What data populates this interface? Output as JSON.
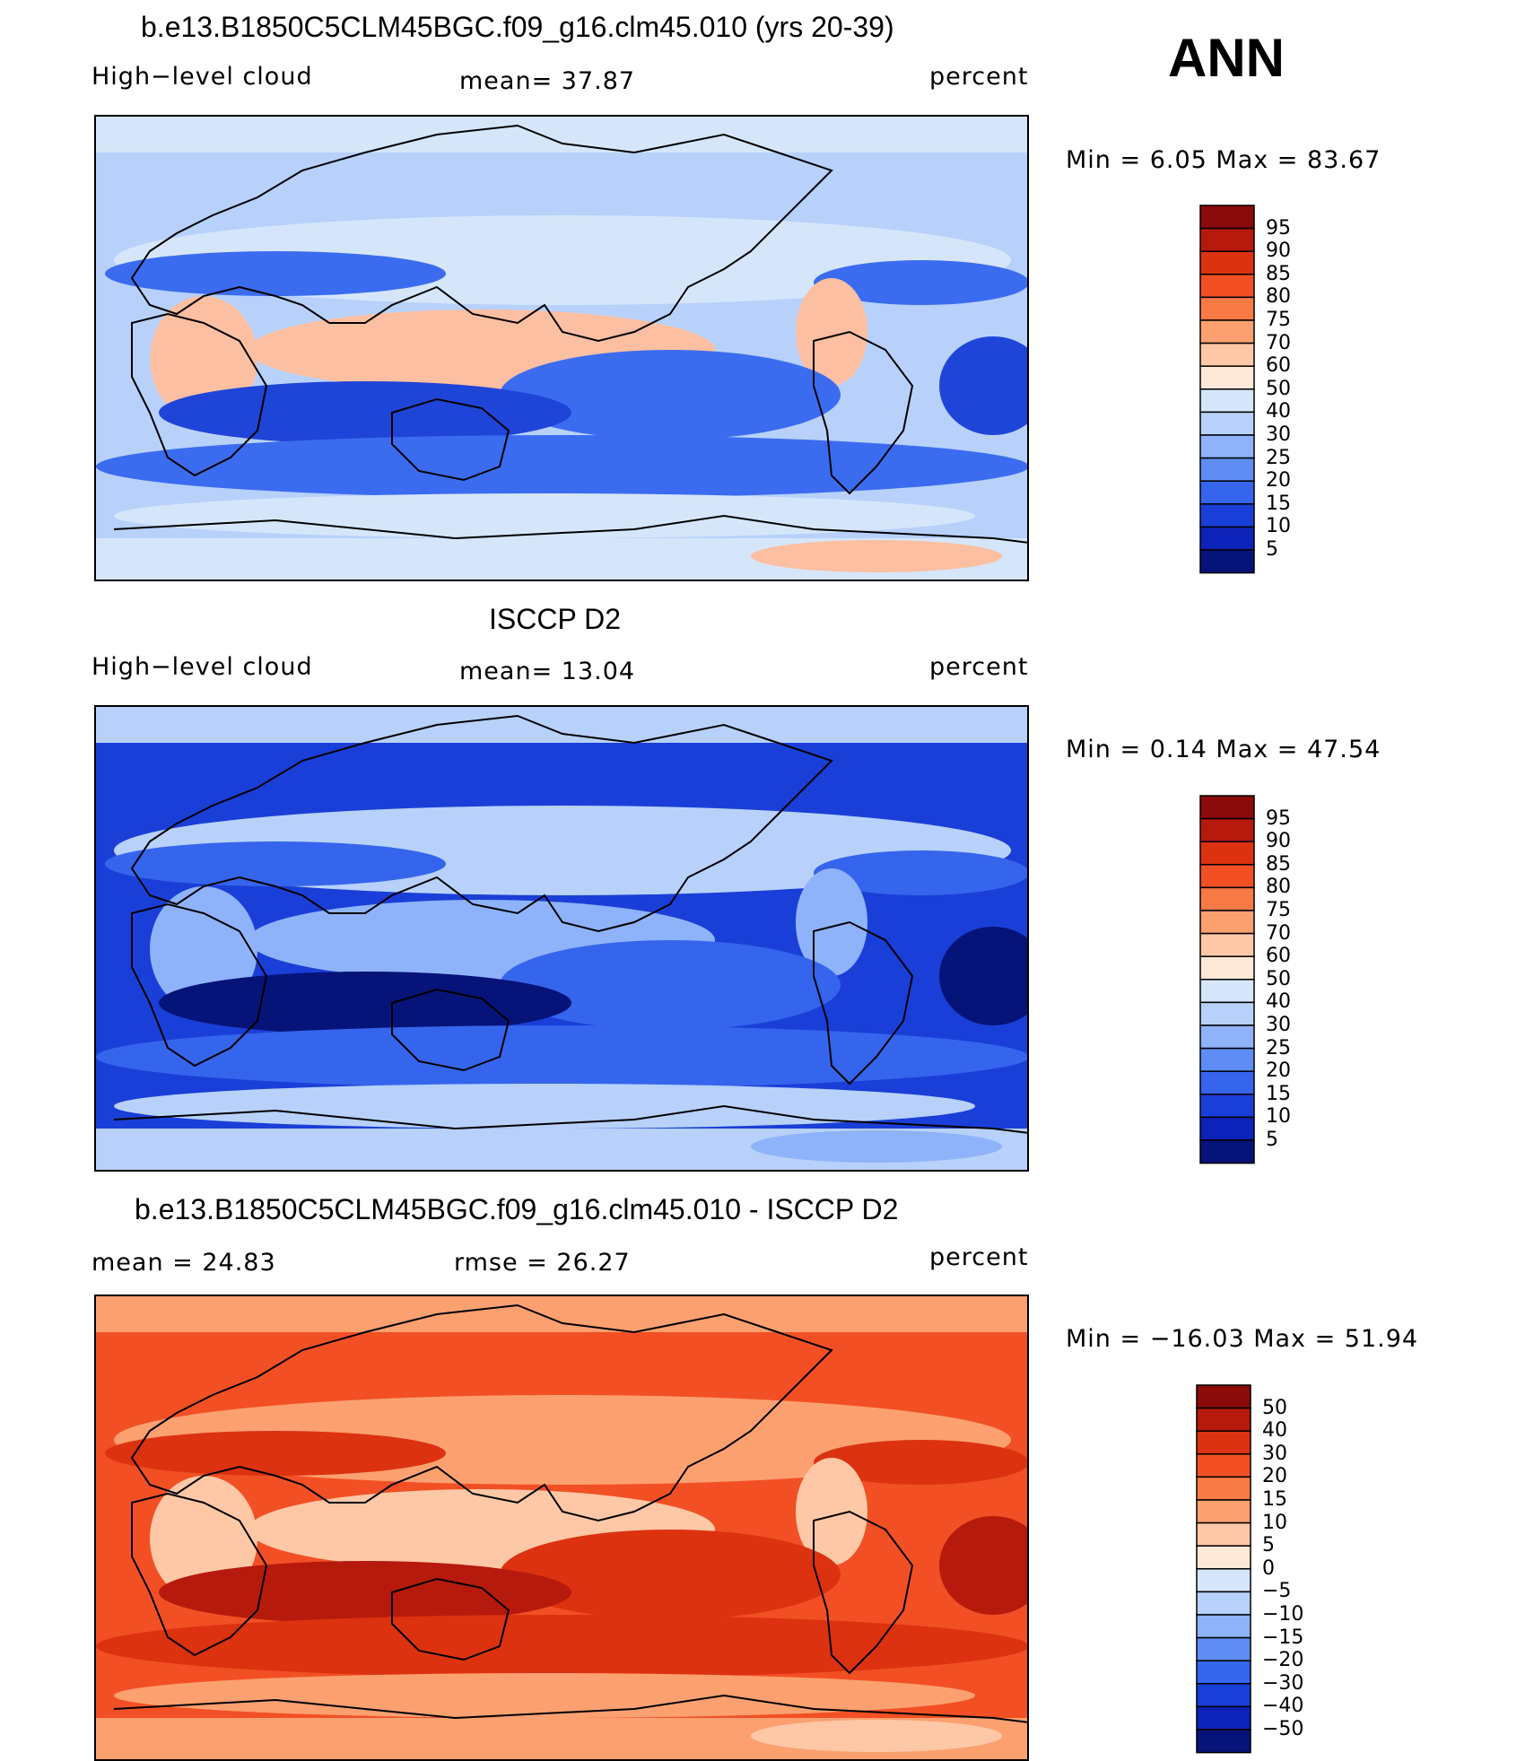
{
  "header": {
    "season": "ANN"
  },
  "panels": [
    {
      "title": "b.e13.B1850C5CLM45BGC.f09_g16.clm45.010 (yrs 20-39)",
      "left_label": "High−level cloud",
      "mid_label": "mean=   37.87",
      "right_label": "percent",
      "minmax": "Min =    6.05  Max =   83.67",
      "colorbar": {
        "labels": [
          "95",
          "90",
          "85",
          "80",
          "75",
          "70",
          "60",
          "50",
          "40",
          "30",
          "25",
          "20",
          "15",
          "10",
          "5"
        ],
        "colors": [
          "#8b0a0a",
          "#b61a0c",
          "#dc3210",
          "#f25024",
          "#fa7a45",
          "#fca070",
          "#fec8a6",
          "#fee8d8",
          "#d6e6fa",
          "#b7d1fb",
          "#8fb3fa",
          "#5e8df5",
          "#3565ec",
          "#1a3fd8",
          "#0d22b8",
          "#061378"
        ]
      },
      "regions": {
        "base": "#b7d1fb",
        "highlight": "#fcbfa1",
        "band": "#3b6cf0",
        "deep": "#1f44d8",
        "light": "#d6e6fa"
      }
    },
    {
      "title": "ISCCP D2",
      "left_label": "High−level cloud",
      "mid_label": "mean=   13.04",
      "right_label": "percent",
      "minmax": "Min =    0.14  Max =   47.54",
      "colorbar": {
        "labels": [
          "95",
          "90",
          "85",
          "80",
          "75",
          "70",
          "60",
          "50",
          "40",
          "30",
          "25",
          "20",
          "15",
          "10",
          "5"
        ],
        "colors": [
          "#8b0a0a",
          "#b61a0c",
          "#dc3210",
          "#f25024",
          "#fa7a45",
          "#fca070",
          "#fec8a6",
          "#fee8d8",
          "#d6e6fa",
          "#b7d1fb",
          "#8fb3fa",
          "#5e8df5",
          "#3565ec",
          "#1a3fd8",
          "#0d22b8",
          "#061378"
        ]
      },
      "regions": {
        "base": "#1a3fd8",
        "highlight": "#8fb3fa",
        "band": "#3565ec",
        "deep": "#061378",
        "light": "#b7d1fb"
      }
    },
    {
      "title": "b.e13.B1850C5CLM45BGC.f09_g16.clm45.010 - ISCCP D2",
      "left_label": "mean =   24.83",
      "mid_label": "rmse =   26.27",
      "right_label": "percent",
      "minmax": "Min = −16.03  Max =   51.94",
      "colorbar": {
        "labels": [
          "50",
          "40",
          "30",
          "20",
          "15",
          "10",
          "5",
          "0",
          "−5",
          "−10",
          "−15",
          "−20",
          "−30",
          "−40",
          "−50"
        ],
        "colors": [
          "#8b0a0a",
          "#b61a0c",
          "#dc3210",
          "#f25024",
          "#fa7a45",
          "#fca070",
          "#fec8a6",
          "#fee8d8",
          "#d6e6fa",
          "#b7d1fb",
          "#8fb3fa",
          "#5e8df5",
          "#3565ec",
          "#1a3fd8",
          "#0d22b8",
          "#061378"
        ]
      },
      "regions": {
        "base": "#f25024",
        "highlight": "#fec8a6",
        "band": "#dc3210",
        "deep": "#b61a0c",
        "light": "#fca070"
      }
    }
  ]
}
